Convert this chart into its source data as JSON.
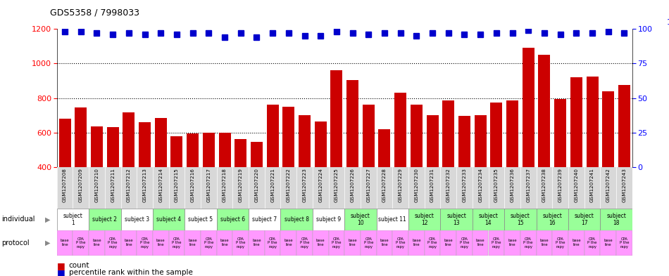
{
  "title": "GDS5358 / 7998033",
  "bar_values": [
    680,
    745,
    635,
    630,
    715,
    660,
    685,
    580,
    595,
    600,
    600,
    560,
    545,
    760,
    750,
    700,
    665,
    960,
    905,
    760,
    620,
    830,
    760,
    700,
    785,
    695,
    700,
    775,
    785,
    1090,
    1050,
    795,
    920,
    925,
    840,
    875
  ],
  "percentile_values": [
    98,
    98,
    97,
    96,
    97,
    96,
    97,
    96,
    97,
    97,
    94,
    97,
    94,
    97,
    97,
    95,
    95,
    98,
    97,
    96,
    97,
    97,
    95,
    97,
    97,
    96,
    96,
    97,
    97,
    99,
    97,
    96,
    97,
    97,
    98,
    97
  ],
  "sample_labels": [
    "GSM1207208",
    "GSM1207209",
    "GSM1207210",
    "GSM1207211",
    "GSM1207212",
    "GSM1207213",
    "GSM1207214",
    "GSM1207215",
    "GSM1207216",
    "GSM1207217",
    "GSM1207218",
    "GSM1207219",
    "GSM1207220",
    "GSM1207221",
    "GSM1207222",
    "GSM1207223",
    "GSM1207224",
    "GSM1207225",
    "GSM1207226",
    "GSM1207227",
    "GSM1207228",
    "GSM1207229",
    "GSM1207230",
    "GSM1207231",
    "GSM1207232",
    "GSM1207233",
    "GSM1207234",
    "GSM1207235",
    "GSM1207236",
    "GSM1207237",
    "GSM1207238",
    "GSM1207239",
    "GSM1207240",
    "GSM1207241",
    "GSM1207242",
    "GSM1207243"
  ],
  "bar_color": "#cc0000",
  "dot_color": "#0000cc",
  "ylim_left": [
    400,
    1200
  ],
  "ylim_right": [
    0,
    100
  ],
  "yticks_left": [
    400,
    600,
    800,
    1000,
    1200
  ],
  "yticks_right": [
    0,
    25,
    50,
    75,
    100
  ],
  "subject_ranges": [
    {
      "start": 0,
      "end": 1,
      "label": "subject\n1",
      "color": "#ffffff"
    },
    {
      "start": 2,
      "end": 3,
      "label": "subject 2",
      "color": "#99ff99"
    },
    {
      "start": 4,
      "end": 5,
      "label": "subject 3",
      "color": "#ffffff"
    },
    {
      "start": 6,
      "end": 7,
      "label": "subject 4",
      "color": "#99ff99"
    },
    {
      "start": 8,
      "end": 9,
      "label": "subject 5",
      "color": "#ffffff"
    },
    {
      "start": 10,
      "end": 11,
      "label": "subject 6",
      "color": "#99ff99"
    },
    {
      "start": 12,
      "end": 13,
      "label": "subject 7",
      "color": "#ffffff"
    },
    {
      "start": 14,
      "end": 15,
      "label": "subject 8",
      "color": "#99ff99"
    },
    {
      "start": 16,
      "end": 17,
      "label": "subject 9",
      "color": "#ffffff"
    },
    {
      "start": 18,
      "end": 19,
      "label": "subject\n10",
      "color": "#99ff99"
    },
    {
      "start": 20,
      "end": 21,
      "label": "subject 11",
      "color": "#ffffff"
    },
    {
      "start": 22,
      "end": 23,
      "label": "subject\n12",
      "color": "#99ff99"
    },
    {
      "start": 24,
      "end": 25,
      "label": "subject\n13",
      "color": "#99ff99"
    },
    {
      "start": 26,
      "end": 27,
      "label": "subject\n14",
      "color": "#99ff99"
    },
    {
      "start": 28,
      "end": 29,
      "label": "subject\n15",
      "color": "#99ff99"
    },
    {
      "start": 30,
      "end": 31,
      "label": "subject\n16",
      "color": "#99ff99"
    },
    {
      "start": 32,
      "end": 33,
      "label": "subject\n17",
      "color": "#99ff99"
    },
    {
      "start": 34,
      "end": 35,
      "label": "subject\n18",
      "color": "#99ff99"
    }
  ],
  "n_bars": 36
}
